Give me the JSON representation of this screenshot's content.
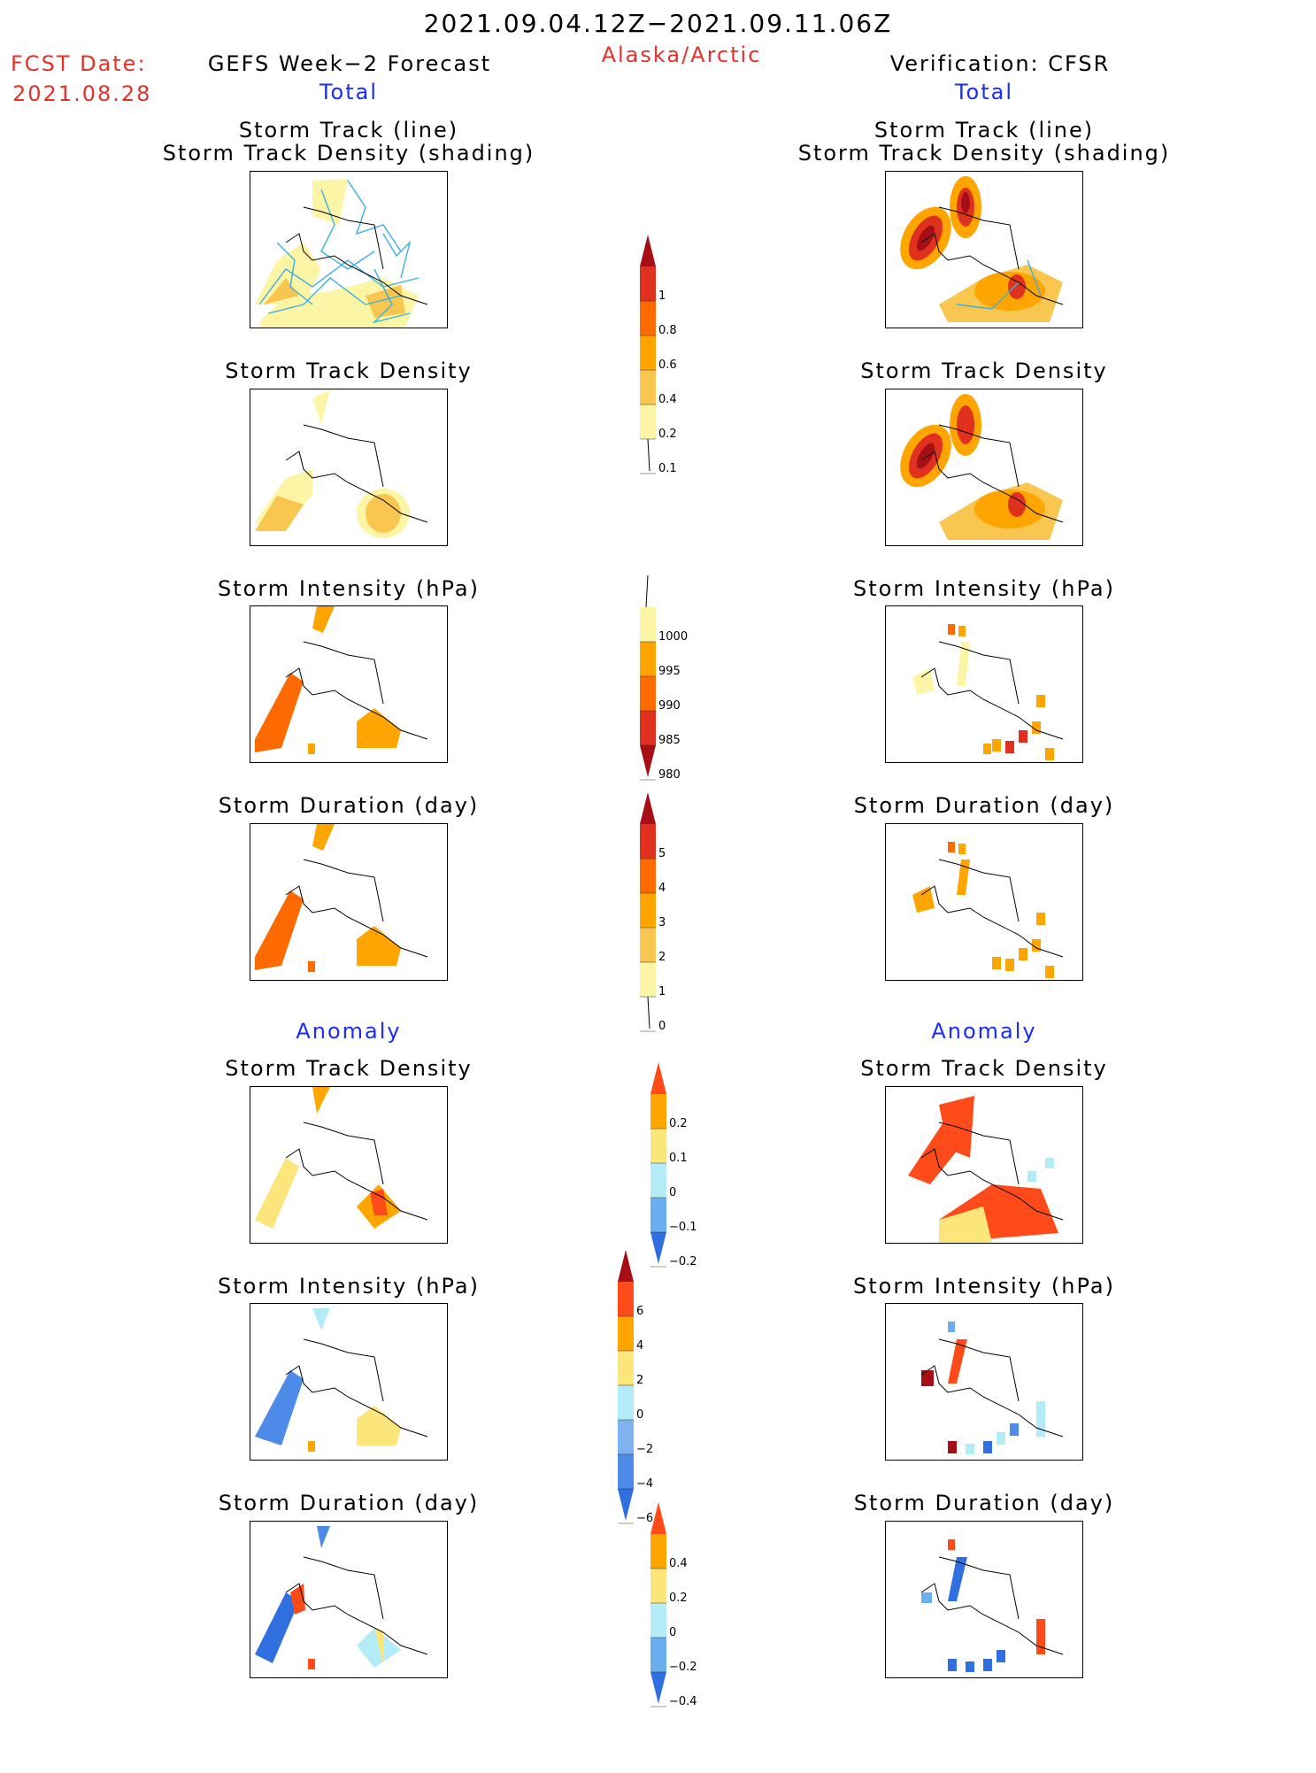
{
  "header": {
    "period": "2021.09.04.12Z−2021.09.11.06Z",
    "region": "Alaska/Arctic",
    "fcst_label": "FCST Date:",
    "fcst_date": "2021.08.28",
    "left_model": "GEFS Week−2 Forecast",
    "right_model": "Verification: CFSR"
  },
  "sections": {
    "total": "Total",
    "anomaly": "Anomaly"
  },
  "panel_titles": {
    "track_line": "Storm Track (line)",
    "track_density_shading": "Storm Track Density (shading)",
    "track_density": "Storm Track Density",
    "intensity": "Storm Intensity (hPa)",
    "duration": "Storm Duration (day)"
  },
  "colorbars": {
    "density_total": {
      "labels": [
        "1",
        "0.8",
        "0.6",
        "0.4",
        "0.2",
        "0.1"
      ],
      "colors": [
        "#a50f15",
        "#e0301e",
        "#ff6a00",
        "#ffa500",
        "#f9c74f",
        "#fdf5a6"
      ]
    },
    "intensity_total": {
      "labels": [
        "1000",
        "995",
        "990",
        "985",
        "980"
      ],
      "colors": [
        "#fdf5a6",
        "#ffa500",
        "#ff6a00",
        "#e0301e",
        "#a50f15"
      ]
    },
    "duration_total": {
      "labels": [
        "5",
        "4",
        "3",
        "2",
        "1",
        "0"
      ],
      "colors": [
        "#a50f15",
        "#e0301e",
        "#ff6a00",
        "#ffa500",
        "#f9c74f",
        "#fdf5a6"
      ]
    },
    "density_anom": {
      "labels": [
        "0.2",
        "0.1",
        "0",
        "−0.1",
        "−0.2"
      ],
      "colors": [
        "#ff4a1a",
        "#ffa500",
        "#fce57a",
        "#b3ecf7",
        "#6aaef0",
        "#2f6fe0"
      ]
    },
    "intensity_anom": {
      "labels": [
        "6",
        "4",
        "2",
        "0",
        "−2",
        "−4",
        "−6"
      ],
      "colors": [
        "#a50f15",
        "#ff4a1a",
        "#ffa500",
        "#fce57a",
        "#b3ecf7",
        "#7fb3ef",
        "#4e8be8",
        "#2f6fe0"
      ]
    },
    "duration_anom": {
      "labels": [
        "0.4",
        "0.2",
        "0",
        "−0.2",
        "−0.4"
      ],
      "colors": [
        "#ff4a1a",
        "#ffa500",
        "#fce57a",
        "#b3ecf7",
        "#6aaef0",
        "#2f6fe0"
      ]
    }
  }
}
